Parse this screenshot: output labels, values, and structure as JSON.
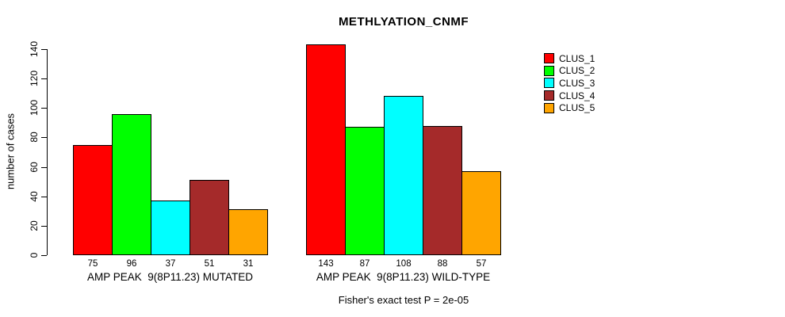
{
  "footer": {
    "note": "Fisher's exact test P = 2e-05"
  },
  "chart_data": {
    "type": "bar",
    "title": "METHLYATION_CNMF",
    "xlabel": "",
    "ylabel": "number of cases",
    "ylim": [
      0,
      140
    ],
    "yticks": [
      0,
      20,
      40,
      60,
      80,
      100,
      120,
      140
    ],
    "grid": false,
    "value_labels_shown": true,
    "legend_position": "right-outside",
    "series": [
      {
        "name": "CLUS_1",
        "color": "#ff0000"
      },
      {
        "name": "CLUS_2",
        "color": "#00ff00"
      },
      {
        "name": "CLUS_3",
        "color": "#00ffff"
      },
      {
        "name": "CLUS_4",
        "color": "#a52a2a"
      },
      {
        "name": "CLUS_5",
        "color": "#ffa500"
      }
    ],
    "groups": [
      {
        "label": "AMP PEAK  9(8P11.23) MUTATED",
        "values": [
          75,
          96,
          37,
          51,
          31
        ]
      },
      {
        "label": "AMP PEAK  9(8P11.23) WILD-TYPE",
        "values": [
          143,
          87,
          108,
          88,
          57
        ]
      }
    ]
  }
}
